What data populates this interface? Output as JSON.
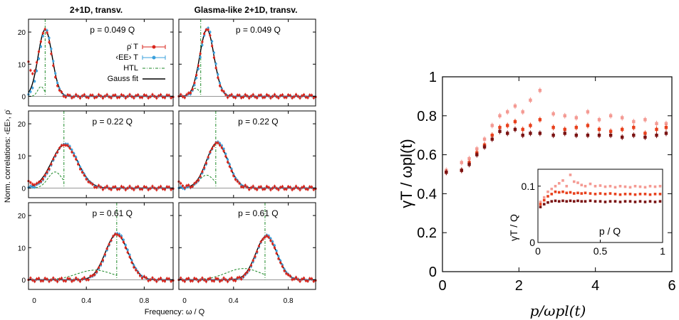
{
  "left_figure": {
    "col_titles": [
      "2+1D,  transv.",
      "Glasma-like 2+1D,  transv."
    ],
    "ylabel": "Norm. correlations: ‹EE›, ρ̇",
    "xlabel": "Frequency:  ω / Q",
    "row_labels": [
      "p = 0.049 Q",
      "p = 0.22 Q",
      "p = 0.61 Q"
    ],
    "legend": [
      "ρ̇ T",
      "‹EE› T",
      "HTL",
      "Gauss fit"
    ],
    "x_ticks": [
      "0",
      "0.4",
      "0.8"
    ],
    "y_ticks": [
      "0",
      "10",
      "20"
    ],
    "colors": {
      "rho": "#d9261c",
      "ee": "#3aa0dc",
      "htl": "#1f8a2a",
      "gauss": "#000000"
    }
  },
  "right_figure": {
    "ylabel": "γT / ωpl(t)",
    "xlabel": "p/ωpl(t)",
    "x_ticks": [
      "0",
      "2",
      "4",
      "6"
    ],
    "y_ticks": [
      "0",
      "0.2",
      "0.4",
      "0.6",
      "0.8",
      "1"
    ],
    "inset": {
      "ylabel": "γT / Q",
      "xlabel": "p / Q",
      "x_ticks": [
        "0",
        "0.5",
        "1"
      ],
      "y_ticks": [
        "0",
        "0.1"
      ]
    },
    "colors": [
      "#f49a93",
      "#e8401c",
      "#7a1212"
    ]
  },
  "chart_data": [
    {
      "type": "line",
      "panel": "row1-col1",
      "title": "2+1D,  transv.",
      "annotation": "p = 0.049 Q",
      "xlim": [
        0,
        1.0
      ],
      "ylim": [
        -3,
        24
      ],
      "series": [
        {
          "name": "ρ̇ T",
          "kind": "rho",
          "peak": {
            "x0": 0.115,
            "sigma": 0.045,
            "amp": 20.5
          },
          "tail": 10
        },
        {
          "name": "‹EE› T",
          "kind": "ee",
          "peak": {
            "x0": 0.12,
            "sigma": 0.045,
            "amp": 20.8
          }
        },
        {
          "name": "HTL",
          "kind": "htl",
          "line_x": 0.115,
          "bump_amp": 3
        },
        {
          "name": "Gauss fit",
          "kind": "gauss",
          "peak": {
            "x0": 0.115,
            "sigma": 0.048,
            "amp": 20.8
          }
        }
      ]
    },
    {
      "type": "line",
      "panel": "row1-col2",
      "title": "Glasma-like 2+1D,  transv.",
      "annotation": "p = 0.049 Q",
      "xlim": [
        0,
        1.0
      ],
      "ylim": [
        -3,
        24
      ],
      "series": [
        {
          "kind": "rho",
          "peak": {
            "x0": 0.205,
            "sigma": 0.05,
            "amp": 21
          }
        },
        {
          "kind": "ee",
          "peak": {
            "x0": 0.21,
            "sigma": 0.05,
            "amp": 21.3
          }
        },
        {
          "kind": "htl",
          "line_x": 0.16,
          "bump_amp": 2.5
        },
        {
          "kind": "gauss",
          "peak": {
            "x0": 0.205,
            "sigma": 0.052,
            "amp": 20.8
          }
        }
      ]
    },
    {
      "type": "line",
      "panel": "row2-col1",
      "annotation": "p = 0.22 Q",
      "xlim": [
        0,
        1.0
      ],
      "ylim": [
        -3,
        24
      ],
      "series": [
        {
          "kind": "rho",
          "peak": {
            "x0": 0.25,
            "sigma": 0.085,
            "amp": 13.5
          },
          "tail": 2
        },
        {
          "kind": "ee",
          "peak": {
            "x0": 0.255,
            "sigma": 0.085,
            "amp": 13.8
          }
        },
        {
          "kind": "htl",
          "line_x": 0.245,
          "bump_amp": 5
        },
        {
          "kind": "gauss",
          "peak": {
            "x0": 0.25,
            "sigma": 0.09,
            "amp": 13.5
          }
        }
      ]
    },
    {
      "type": "line",
      "panel": "row2-col2",
      "annotation": "p = 0.22 Q",
      "xlim": [
        0,
        1.0
      ],
      "ylim": [
        -3,
        24
      ],
      "series": [
        {
          "kind": "rho",
          "peak": {
            "x0": 0.28,
            "sigma": 0.075,
            "amp": 14
          },
          "tail": 2
        },
        {
          "kind": "ee",
          "peak": {
            "x0": 0.285,
            "sigma": 0.075,
            "amp": 14.3
          }
        },
        {
          "kind": "htl",
          "line_x": 0.27,
          "bump_amp": 4
        },
        {
          "kind": "gauss",
          "peak": {
            "x0": 0.28,
            "sigma": 0.078,
            "amp": 14
          }
        }
      ]
    },
    {
      "type": "line",
      "panel": "row3-col1",
      "annotation": "p = 0.61 Q",
      "xlim": [
        0,
        1.0
      ],
      "ylim": [
        -3,
        24
      ],
      "series": [
        {
          "kind": "rho",
          "peak": {
            "x0": 0.61,
            "sigma": 0.075,
            "amp": 14.2
          }
        },
        {
          "kind": "ee",
          "peak": {
            "x0": 0.615,
            "sigma": 0.075,
            "amp": 14.5
          }
        },
        {
          "kind": "htl",
          "line_x": 0.61,
          "bump_amp": 3
        },
        {
          "kind": "gauss",
          "peak": {
            "x0": 0.61,
            "sigma": 0.078,
            "amp": 14.2
          }
        }
      ]
    },
    {
      "type": "line",
      "panel": "row3-col2",
      "annotation": "p = 0.61 Q",
      "xlim": [
        0,
        1.0
      ],
      "ylim": [
        -3,
        24
      ],
      "series": [
        {
          "kind": "rho",
          "peak": {
            "x0": 0.64,
            "sigma": 0.075,
            "amp": 13.5
          }
        },
        {
          "kind": "ee",
          "peak": {
            "x0": 0.645,
            "sigma": 0.075,
            "amp": 13.8
          }
        },
        {
          "kind": "htl",
          "line_x": 0.63,
          "bump_amp": 3.5
        },
        {
          "kind": "gauss",
          "peak": {
            "x0": 0.64,
            "sigma": 0.078,
            "amp": 13.5
          }
        }
      ]
    },
    {
      "type": "scatter",
      "panel": "right-main",
      "xlabel": "p/ωpl(t)",
      "ylabel": "γT / ωpl(t)",
      "xlim": [
        0,
        6
      ],
      "ylim": [
        0,
        1
      ],
      "series": [
        {
          "color": "#f49a93",
          "x": [
            0.1,
            0.5,
            0.7,
            0.9,
            1.1,
            1.3,
            1.5,
            1.7,
            1.9,
            2.1,
            2.3,
            2.55,
            2.9,
            3.2,
            3.5,
            3.8,
            4.1,
            4.4,
            4.7,
            5.0,
            5.3,
            5.6,
            5.85
          ],
          "y": [
            0.52,
            0.56,
            0.58,
            0.63,
            0.68,
            0.75,
            0.8,
            0.82,
            0.85,
            0.82,
            0.88,
            0.93,
            0.81,
            0.8,
            0.79,
            0.82,
            0.78,
            0.8,
            0.79,
            0.77,
            0.78,
            0.76,
            0.76
          ]
        },
        {
          "color": "#e8401c",
          "x": [
            0.1,
            0.5,
            0.7,
            0.9,
            1.1,
            1.3,
            1.5,
            1.7,
            1.9,
            2.1,
            2.3,
            2.55,
            2.9,
            3.2,
            3.5,
            3.8,
            4.1,
            4.4,
            4.7,
            5.0,
            5.3,
            5.6,
            5.85
          ],
          "y": [
            0.51,
            0.52,
            0.56,
            0.61,
            0.65,
            0.7,
            0.74,
            0.75,
            0.77,
            0.73,
            0.75,
            0.78,
            0.74,
            0.73,
            0.74,
            0.75,
            0.73,
            0.72,
            0.73,
            0.74,
            0.71,
            0.73,
            0.74
          ]
        },
        {
          "color": "#7a1212",
          "x": [
            0.1,
            0.5,
            0.7,
            0.9,
            1.1,
            1.3,
            1.5,
            1.7,
            1.9,
            2.1,
            2.3,
            2.55,
            2.9,
            3.2,
            3.5,
            3.8,
            4.1,
            4.4,
            4.7,
            5.0,
            5.3,
            5.6,
            5.85
          ],
          "y": [
            0.51,
            0.52,
            0.55,
            0.6,
            0.64,
            0.68,
            0.72,
            0.71,
            0.73,
            0.7,
            0.71,
            0.71,
            0.7,
            0.71,
            0.7,
            0.7,
            0.7,
            0.7,
            0.69,
            0.7,
            0.69,
            0.7,
            0.71
          ]
        }
      ]
    },
    {
      "type": "scatter",
      "panel": "right-inset",
      "xlabel": "p / Q",
      "ylabel": "γT / Q",
      "xlim": [
        0,
        1
      ],
      "ylim": [
        0,
        0.13
      ],
      "series": [
        {
          "color": "#f49a93",
          "x": [
            0.02,
            0.05,
            0.08,
            0.11,
            0.14,
            0.17,
            0.2,
            0.23,
            0.26,
            0.29,
            0.32,
            0.35,
            0.38,
            0.42,
            0.46,
            0.5,
            0.54,
            0.58,
            0.62,
            0.66,
            0.7,
            0.74,
            0.78,
            0.82,
            0.86,
            0.9,
            0.94,
            0.98
          ],
          "y": [
            0.072,
            0.08,
            0.09,
            0.095,
            0.1,
            0.105,
            0.11,
            0.1,
            0.12,
            0.108,
            0.106,
            0.102,
            0.1,
            0.104,
            0.1,
            0.101,
            0.099,
            0.1,
            0.098,
            0.1,
            0.099,
            0.098,
            0.1,
            0.099,
            0.098,
            0.1,
            0.099,
            0.1
          ]
        },
        {
          "color": "#e8401c",
          "x": [
            0.02,
            0.05,
            0.08,
            0.11,
            0.14,
            0.17,
            0.2,
            0.23,
            0.26,
            0.29,
            0.32,
            0.35,
            0.38,
            0.42,
            0.46,
            0.5,
            0.54,
            0.58,
            0.62,
            0.66,
            0.7,
            0.74,
            0.78,
            0.82,
            0.86,
            0.9,
            0.94,
            0.98
          ],
          "y": [
            0.068,
            0.075,
            0.082,
            0.086,
            0.09,
            0.089,
            0.09,
            0.088,
            0.089,
            0.087,
            0.088,
            0.087,
            0.088,
            0.087,
            0.086,
            0.087,
            0.086,
            0.087,
            0.086,
            0.085,
            0.086,
            0.086,
            0.085,
            0.086,
            0.086,
            0.085,
            0.086,
            0.086
          ]
        },
        {
          "color": "#7a1212",
          "x": [
            0.02,
            0.05,
            0.08,
            0.11,
            0.14,
            0.17,
            0.2,
            0.23,
            0.26,
            0.29,
            0.32,
            0.35,
            0.38,
            0.42,
            0.46,
            0.5,
            0.54,
            0.58,
            0.62,
            0.66,
            0.7,
            0.74,
            0.78,
            0.82,
            0.86,
            0.9,
            0.94,
            0.98
          ],
          "y": [
            0.063,
            0.068,
            0.071,
            0.073,
            0.074,
            0.073,
            0.074,
            0.073,
            0.074,
            0.073,
            0.074,
            0.073,
            0.073,
            0.074,
            0.073,
            0.073,
            0.072,
            0.073,
            0.073,
            0.072,
            0.073,
            0.073,
            0.072,
            0.073,
            0.072,
            0.073,
            0.072,
            0.073
          ]
        }
      ]
    }
  ]
}
